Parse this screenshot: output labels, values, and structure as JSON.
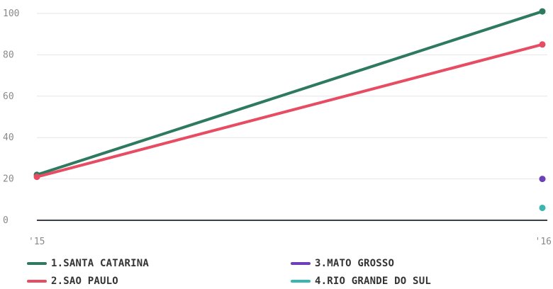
{
  "chart_data": {
    "type": "line",
    "categories": [
      "'15",
      "'16"
    ],
    "ylim": [
      0,
      100
    ],
    "yticks": [
      0,
      20,
      40,
      60,
      80,
      100
    ],
    "grid": true,
    "legend_position": "bottom",
    "series": [
      {
        "name": "1.SANTA CATARINA",
        "color": "#2e7a5e",
        "values": [
          22,
          101
        ]
      },
      {
        "name": "2.SAO PAULO",
        "color": "#e84c63",
        "values": [
          21,
          85
        ]
      },
      {
        "name": "3.MATO GROSSO",
        "color": "#6d3fb8",
        "values": [
          null,
          20
        ]
      },
      {
        "name": "4.RIO GRANDE DO SUL",
        "color": "#3ab5b0",
        "values": [
          null,
          6
        ]
      }
    ]
  }
}
